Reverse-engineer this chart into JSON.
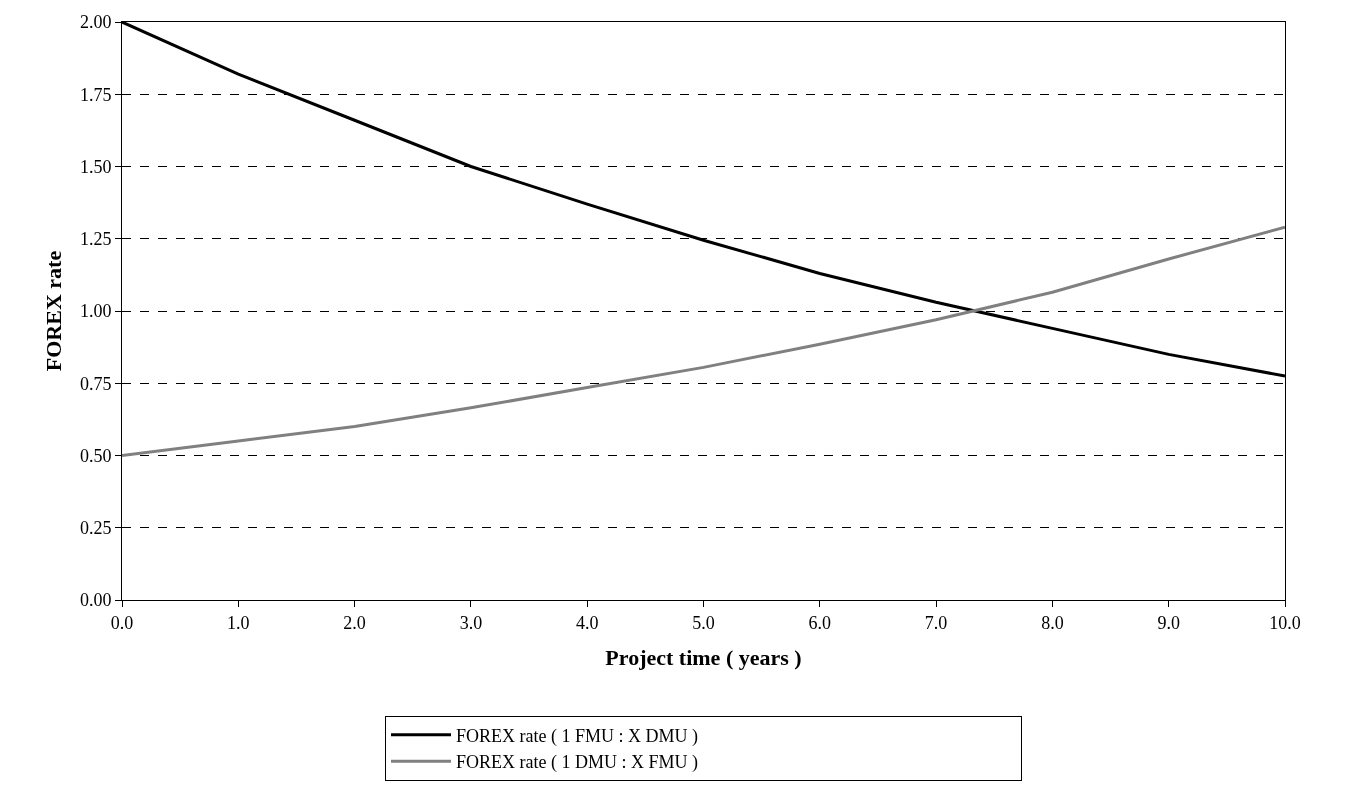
{
  "chart_data": {
    "type": "line",
    "xlabel": "Project time ( years )",
    "ylabel": "FOREX rate",
    "x": [
      0,
      1,
      2,
      3,
      4,
      5,
      6,
      7,
      8,
      9,
      10
    ],
    "series": [
      {
        "name": "FOREX rate ( 1 FMU : X DMU )",
        "color": "#000000",
        "values": [
          2.0,
          1.82,
          1.66,
          1.5,
          1.37,
          1.245,
          1.13,
          1.03,
          0.94,
          0.85,
          0.775
        ]
      },
      {
        "name": "FOREX rate ( 1 DMU : X FMU )",
        "color": "#808080",
        "values": [
          0.5,
          0.55,
          0.6,
          0.665,
          0.735,
          0.805,
          0.885,
          0.97,
          1.065,
          1.18,
          1.29
        ]
      }
    ],
    "xlim": [
      0,
      10
    ],
    "ylim": [
      0,
      2
    ],
    "xticks": [
      {
        "value": 0,
        "label": "0.0"
      },
      {
        "value": 1,
        "label": "1.0"
      },
      {
        "value": 2,
        "label": "2.0"
      },
      {
        "value": 3,
        "label": "3.0"
      },
      {
        "value": 4,
        "label": "4.0"
      },
      {
        "value": 5,
        "label": "5.0"
      },
      {
        "value": 6,
        "label": "6.0"
      },
      {
        "value": 7,
        "label": "7.0"
      },
      {
        "value": 8,
        "label": "8.0"
      },
      {
        "value": 9,
        "label": "9.0"
      },
      {
        "value": 10,
        "label": "10.0"
      }
    ],
    "yticks": [
      {
        "value": 0,
        "label": "0.00"
      },
      {
        "value": 0.25,
        "label": "0.25"
      },
      {
        "value": 0.5,
        "label": "0.50"
      },
      {
        "value": 0.75,
        "label": "0.75"
      },
      {
        "value": 1,
        "label": "1.00"
      },
      {
        "value": 1.25,
        "label": "1.25"
      },
      {
        "value": 1.5,
        "label": "1.50"
      },
      {
        "value": 1.75,
        "label": "1.75"
      },
      {
        "value": 2,
        "label": "2.00"
      }
    ],
    "grid": "y",
    "legend": "bottom",
    "marker": "none",
    "line_style": "solid"
  }
}
